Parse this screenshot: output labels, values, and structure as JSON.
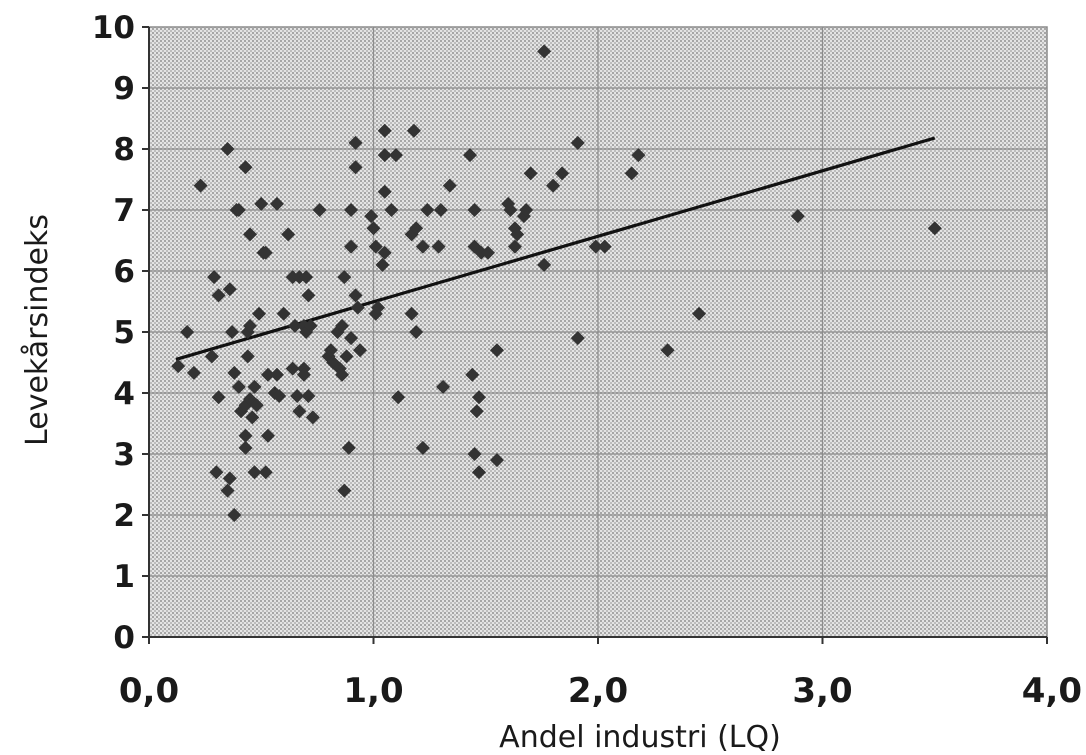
{
  "chart_data": {
    "type": "scatter",
    "xlabel": "Andel industri (LQ)",
    "ylabel": "Levekårsindeks",
    "xlim": [
      0,
      4
    ],
    "ylim": [
      0,
      10
    ],
    "x_ticks": [
      0,
      1,
      2,
      3,
      4
    ],
    "x_tick_labels": [
      "0,0",
      "1,0",
      "2,0",
      "3,0",
      "4,0"
    ],
    "y_ticks": [
      0,
      1,
      2,
      3,
      4,
      5,
      6,
      7,
      8,
      9,
      10
    ],
    "y_tick_labels": [
      "0",
      "1",
      "2",
      "3",
      "4",
      "5",
      "6",
      "7",
      "8",
      "9",
      "10"
    ],
    "grid": true,
    "legend": "none",
    "colors": {
      "marker": "#333333",
      "trendline": "#111111",
      "plot_background": "#d9d9d9",
      "grid": "#8c8c8c"
    },
    "trendline": {
      "type": "linear",
      "x": [
        0.12,
        3.5
      ],
      "y": [
        4.55,
        8.18
      ]
    },
    "points": [
      [
        0.13,
        4.44
      ],
      [
        0.17,
        5.0
      ],
      [
        0.2,
        4.33
      ],
      [
        0.23,
        7.4
      ],
      [
        0.28,
        4.6
      ],
      [
        0.29,
        5.9
      ],
      [
        0.3,
        2.7
      ],
      [
        0.31,
        5.6
      ],
      [
        0.31,
        3.93
      ],
      [
        0.35,
        8.0
      ],
      [
        0.35,
        2.4
      ],
      [
        0.36,
        5.7
      ],
      [
        0.36,
        2.6
      ],
      [
        0.37,
        5.0
      ],
      [
        0.38,
        4.33
      ],
      [
        0.38,
        2.0
      ],
      [
        0.39,
        7.0
      ],
      [
        0.4,
        7.0
      ],
      [
        0.4,
        4.1
      ],
      [
        0.41,
        3.7
      ],
      [
        0.43,
        7.7
      ],
      [
        0.43,
        3.1
      ],
      [
        0.43,
        3.3
      ],
      [
        0.43,
        3.8
      ],
      [
        0.44,
        4.6
      ],
      [
        0.44,
        5.0
      ],
      [
        0.45,
        6.6
      ],
      [
        0.45,
        5.1
      ],
      [
        0.45,
        3.9
      ],
      [
        0.46,
        3.6
      ],
      [
        0.47,
        4.1
      ],
      [
        0.47,
        2.7
      ],
      [
        0.48,
        3.8
      ],
      [
        0.49,
        5.3
      ],
      [
        0.5,
        7.1
      ],
      [
        0.51,
        6.3
      ],
      [
        0.52,
        6.3
      ],
      [
        0.52,
        2.7
      ],
      [
        0.53,
        4.3
      ],
      [
        0.53,
        3.3
      ],
      [
        0.56,
        4.0
      ],
      [
        0.57,
        7.1
      ],
      [
        0.57,
        4.3
      ],
      [
        0.58,
        3.95
      ],
      [
        0.6,
        5.3
      ],
      [
        0.62,
        6.6
      ],
      [
        0.64,
        5.9
      ],
      [
        0.64,
        4.4
      ],
      [
        0.65,
        5.1
      ],
      [
        0.66,
        3.95
      ],
      [
        0.67,
        5.9
      ],
      [
        0.67,
        3.7
      ],
      [
        0.69,
        5.1
      ],
      [
        0.69,
        4.4
      ],
      [
        0.69,
        4.3
      ],
      [
        0.7,
        5.9
      ],
      [
        0.7,
        5.0
      ],
      [
        0.71,
        5.6
      ],
      [
        0.71,
        3.95
      ],
      [
        0.72,
        5.1
      ],
      [
        0.73,
        3.6
      ],
      [
        0.76,
        7.0
      ],
      [
        0.8,
        4.6
      ],
      [
        0.81,
        4.7
      ],
      [
        0.82,
        4.5
      ],
      [
        0.84,
        5.0
      ],
      [
        0.85,
        4.4
      ],
      [
        0.86,
        4.3
      ],
      [
        0.86,
        5.1
      ],
      [
        0.87,
        5.9
      ],
      [
        0.87,
        2.4
      ],
      [
        0.88,
        4.6
      ],
      [
        0.89,
        3.1
      ],
      [
        0.9,
        7.0
      ],
      [
        0.9,
        6.4
      ],
      [
        0.9,
        4.9
      ],
      [
        0.92,
        8.1
      ],
      [
        0.92,
        7.7
      ],
      [
        0.92,
        5.6
      ],
      [
        0.93,
        5.4
      ],
      [
        0.94,
        4.7
      ],
      [
        0.99,
        6.9
      ],
      [
        1.0,
        6.7
      ],
      [
        1.01,
        6.4
      ],
      [
        1.01,
        5.3
      ],
      [
        1.02,
        5.4
      ],
      [
        1.04,
        6.1
      ],
      [
        1.05,
        8.3
      ],
      [
        1.05,
        7.9
      ],
      [
        1.05,
        6.3
      ],
      [
        1.05,
        7.3
      ],
      [
        1.08,
        7.0
      ],
      [
        1.1,
        7.9
      ],
      [
        1.11,
        3.93
      ],
      [
        1.17,
        6.6
      ],
      [
        1.17,
        5.3
      ],
      [
        1.18,
        8.3
      ],
      [
        1.19,
        6.7
      ],
      [
        1.19,
        5.0
      ],
      [
        1.22,
        6.4
      ],
      [
        1.22,
        3.1
      ],
      [
        1.24,
        7.0
      ],
      [
        1.29,
        6.4
      ],
      [
        1.3,
        7.0
      ],
      [
        1.31,
        4.1
      ],
      [
        1.34,
        7.4
      ],
      [
        1.43,
        7.9
      ],
      [
        1.44,
        4.3
      ],
      [
        1.45,
        7.0
      ],
      [
        1.45,
        6.4
      ],
      [
        1.45,
        3.0
      ],
      [
        1.46,
        3.7
      ],
      [
        1.47,
        3.93
      ],
      [
        1.47,
        2.7
      ],
      [
        1.48,
        6.3
      ],
      [
        1.51,
        6.3
      ],
      [
        1.55,
        4.7
      ],
      [
        1.55,
        2.9
      ],
      [
        1.6,
        7.1
      ],
      [
        1.61,
        7.0
      ],
      [
        1.63,
        6.4
      ],
      [
        1.63,
        6.7
      ],
      [
        1.64,
        6.6
      ],
      [
        1.67,
        6.9
      ],
      [
        1.68,
        7.0
      ],
      [
        1.7,
        7.6
      ],
      [
        1.76,
        9.6
      ],
      [
        1.76,
        6.1
      ],
      [
        1.8,
        7.4
      ],
      [
        1.84,
        7.6
      ],
      [
        1.91,
        8.1
      ],
      [
        1.91,
        4.9
      ],
      [
        1.99,
        6.4
      ],
      [
        2.03,
        6.4
      ],
      [
        2.15,
        7.6
      ],
      [
        2.18,
        7.9
      ],
      [
        2.31,
        4.7
      ],
      [
        2.45,
        5.3
      ],
      [
        2.89,
        6.9
      ],
      [
        3.5,
        6.7
      ]
    ]
  }
}
